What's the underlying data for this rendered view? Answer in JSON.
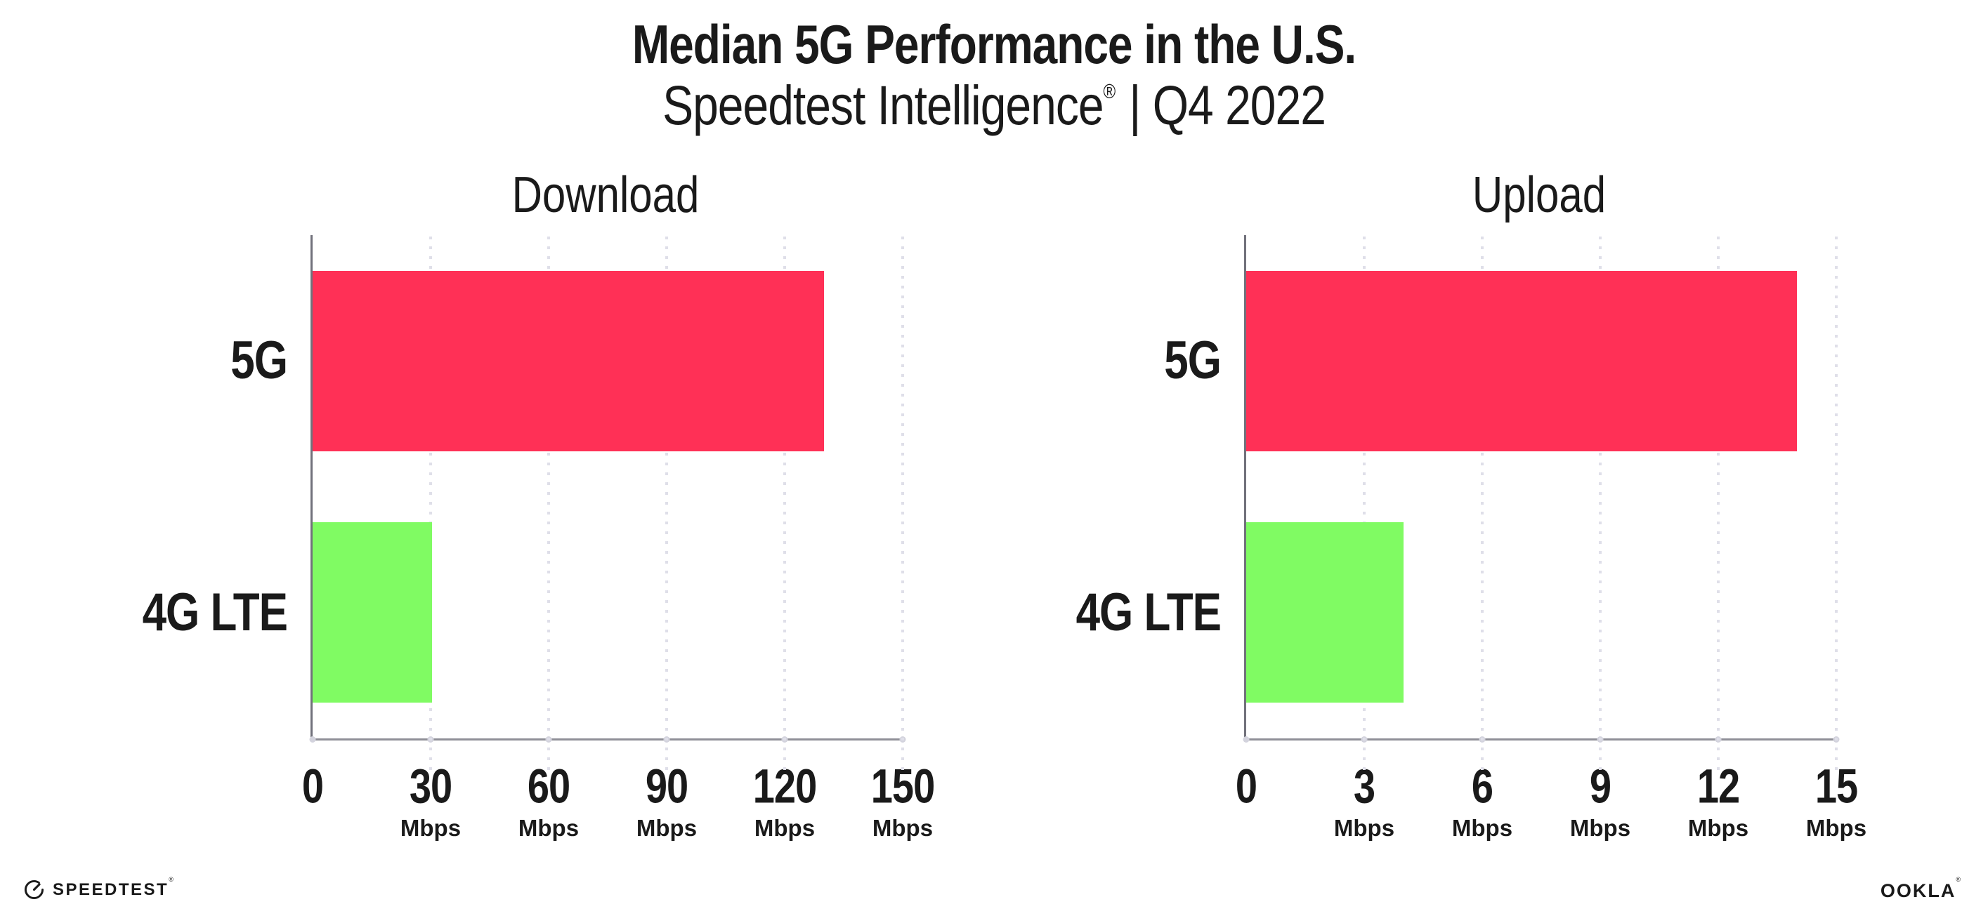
{
  "header": {
    "title": "Median 5G Performance in the U.S.",
    "subtitle_product": "Speedtest Intelligence",
    "subtitle_reg": "®",
    "subtitle_rest": "| Q4 2022"
  },
  "footer": {
    "speedtest_label": "SPEEDTEST",
    "speedtest_reg": "®",
    "ookla_label": "OOKLA",
    "ookla_reg": "®"
  },
  "colors": {
    "bar_5g": "#FF3056",
    "bar_4g_lte": "#80FB63",
    "text": "#1A1A1A",
    "gridline": "#DFDFE9",
    "axis_bottom": "#8F8F97",
    "axis_left": "#71717B"
  },
  "chart_data": [
    {
      "type": "bar",
      "orientation": "horizontal",
      "title": "Download",
      "categories": [
        "5G",
        "4G LTE"
      ],
      "values": [
        130,
        30.4
      ],
      "unit": "Mbps",
      "xlabel": "",
      "ylabel": "",
      "xlim": [
        0,
        150
      ],
      "ticks": [
        0,
        30,
        60,
        90,
        120,
        150
      ],
      "gridlines": true,
      "legend": false,
      "bar_colors": [
        "#FF3056",
        "#80FB63"
      ]
    },
    {
      "type": "bar",
      "orientation": "horizontal",
      "title": "Upload",
      "categories": [
        "5G",
        "4G LTE"
      ],
      "values": [
        14,
        4
      ],
      "unit": "Mbps",
      "xlabel": "",
      "ylabel": "",
      "xlim": [
        0,
        15
      ],
      "ticks": [
        0,
        3,
        6,
        9,
        12,
        15
      ],
      "gridlines": true,
      "legend": false,
      "bar_colors": [
        "#FF3056",
        "#80FB63"
      ]
    }
  ]
}
